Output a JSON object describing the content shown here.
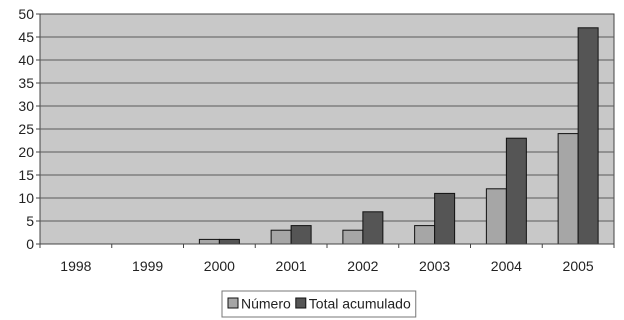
{
  "chart_data": {
    "type": "bar",
    "categories": [
      "1998",
      "1999",
      "2000",
      "2001",
      "2002",
      "2003",
      "2004",
      "2005"
    ],
    "series": [
      {
        "name": "Número",
        "values": [
          0,
          0,
          1,
          3,
          3,
          4,
          12,
          24
        ]
      },
      {
        "name": "Total acumulado",
        "values": [
          0,
          0,
          1,
          4,
          7,
          11,
          23,
          47
        ]
      }
    ],
    "title": "",
    "xlabel": "",
    "ylabel": "",
    "ylim": [
      0,
      50
    ],
    "yticks": [
      "0",
      "5",
      "10",
      "15",
      "20",
      "25",
      "30",
      "35",
      "40",
      "45",
      "50"
    ],
    "grid": true,
    "legend_position": "bottom",
    "colors": {
      "plot_background": "#c8c8c8",
      "gridline": "#5a5a5a",
      "series": [
        "#a6a6a6",
        "#555555"
      ]
    }
  }
}
